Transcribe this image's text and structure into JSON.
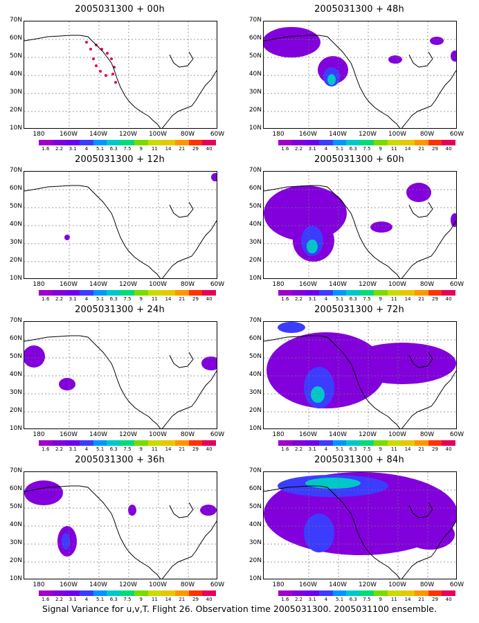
{
  "panels": [
    {
      "title": "2005031300 + 00h"
    },
    {
      "title": "2005031300 + 48h"
    },
    {
      "title": "2005031300 + 12h"
    },
    {
      "title": "2005031300 + 60h"
    },
    {
      "title": "2005031300 + 24h"
    },
    {
      "title": "2005031300 + 72h"
    },
    {
      "title": "2005031300 + 36h"
    },
    {
      "title": "2005031300 + 84h"
    }
  ],
  "lat_labels": [
    "70N",
    "60N",
    "50N",
    "40N",
    "30N",
    "20N",
    "10N"
  ],
  "lon_labels": [
    "180",
    "160W",
    "140W",
    "120W",
    "100W",
    "80W",
    "60W"
  ],
  "colorbar": {
    "labels": [
      "1.6",
      "2.2",
      "3.1",
      "4",
      "5.1",
      "6.3",
      "7.5",
      "9",
      "11",
      "14",
      "21",
      "29",
      "40"
    ],
    "colors": [
      "#a000c8",
      "#8200dc",
      "#6e00f0",
      "#3c3cff",
      "#0096ff",
      "#00c8c8",
      "#00dc78",
      "#78dc00",
      "#c8dc00",
      "#e6c800",
      "#ff9600",
      "#ff3200",
      "#e6005a"
    ]
  },
  "caption": "Signal Variance for u,v,T. Flight 26. Observation time 2005031300. 2005031100 ensemble."
}
